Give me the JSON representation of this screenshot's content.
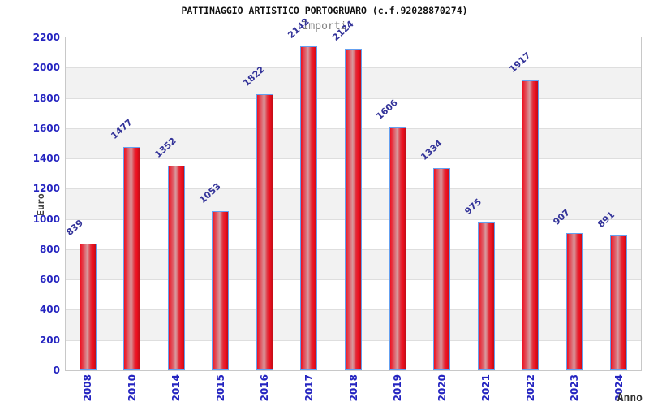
{
  "chart_data": {
    "type": "bar",
    "title": "PATTINAGGIO ARTISTICO PORTOGRUARO (c.f.92028870274)",
    "subtitle": "Importi",
    "xlabel": "Anno",
    "ylabel": "Euro",
    "categories": [
      "2008",
      "2010",
      "2014",
      "2015",
      "2016",
      "2017",
      "2018",
      "2019",
      "2020",
      "2021",
      "2022",
      "2023",
      "2024"
    ],
    "values": [
      839,
      1477,
      1352,
      1053,
      1822,
      2142,
      2124,
      1606,
      1334,
      975,
      1917,
      907,
      891
    ],
    "ylim": [
      0,
      2200
    ],
    "ytick_step": 200,
    "grid": "horizontal-bands-alternating",
    "legend": "none",
    "value_label_rotation_deg": -42,
    "xtick_rotation_deg": -90,
    "colors": {
      "bar_fill_main": "#ee1020",
      "bar_fill_highlight": "#d89a9e",
      "bar_fill_dark_edge": "#c00d16",
      "bar_border": "#64a0f0",
      "tick_label": "#2424c0",
      "value_label": "#333399",
      "title": "#111111",
      "subtitle": "#808080",
      "axis_title": "#404040",
      "plot_border": "#c8c8c8",
      "band_gray": "#f2f2f2",
      "gridline": "#dedede",
      "background": "#ffffff"
    }
  }
}
